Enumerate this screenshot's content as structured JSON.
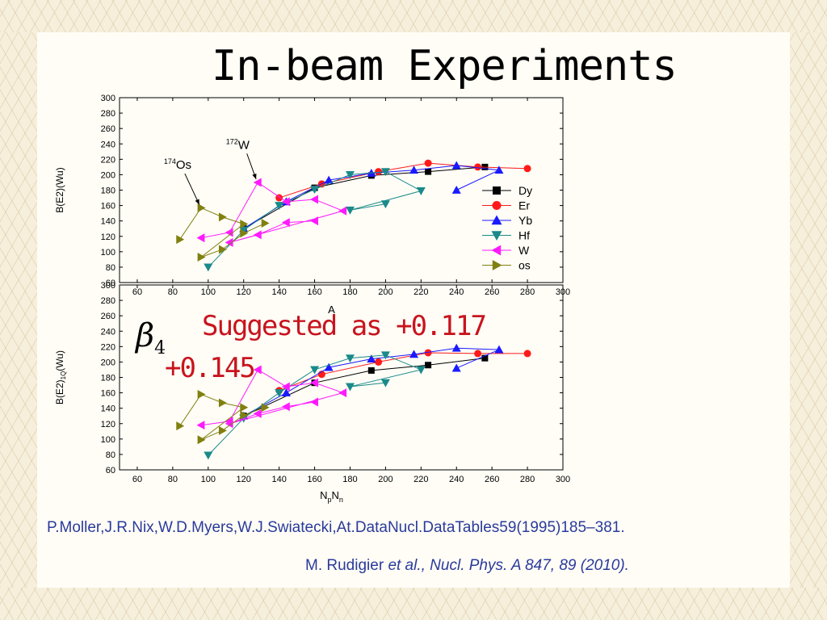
{
  "slide": {
    "title": "In-beam Experiments",
    "beta_symbol": "β",
    "beta_subscript": "4",
    "suggested_text": "Suggested as +0.117",
    "suggested_text2": "+0.145",
    "ref1": "P.Moller,J.R.Nix,W.D.Myers,W.J.Swiatecki,At.DataNucl.DataTables59(1995)185–381.",
    "ref2_author": "M. Rudigier",
    "ref2_rest": "et al., Nucl. Phys. A 847, 89 (2010)."
  },
  "colors": {
    "Dy": "#000000",
    "Er": "#ff1a1a",
    "Yb": "#1a1aff",
    "Hf": "#1a8a8a",
    "W": "#ff1aff",
    "os": "#808010",
    "text_blue": "#2a3a9c",
    "suggest_red": "#c8141e"
  },
  "chart_data": [
    {
      "type": "line",
      "panel": "top",
      "xlabel": "A",
      "ylabel": "B(E2)(Wu)",
      "xlim": [
        50,
        300
      ],
      "ylim": [
        60,
        300
      ],
      "xticks": [
        60,
        80,
        100,
        120,
        140,
        160,
        180,
        200,
        220,
        240,
        260,
        280,
        300
      ],
      "yticks": [
        60,
        80,
        100,
        120,
        140,
        160,
        180,
        200,
        220,
        240,
        260,
        280,
        300
      ],
      "legend": [
        "Dy",
        "Er",
        "Yb",
        "Hf",
        "W",
        "os"
      ],
      "legend_position": "right",
      "annotations": [
        {
          "sup": "174",
          "text": "Os",
          "from": [
            85,
            214
          ],
          "to": [
            95,
            157
          ]
        },
        {
          "sup": "172",
          "text": "W",
          "from": [
            120,
            240
          ],
          "to": [
            127,
            190
          ]
        }
      ],
      "series": [
        {
          "name": "Dy",
          "marker": "square",
          "points": [
            [
              120,
              130
            ],
            [
              160,
              183
            ],
            [
              192,
              199
            ],
            [
              224,
              204
            ],
            [
              256,
              210
            ]
          ]
        },
        {
          "name": "Er",
          "marker": "circle",
          "points": [
            [
              140,
              170
            ],
            [
              164,
              188
            ],
            [
              196,
              204
            ],
            [
              224,
              215
            ],
            [
              252,
              210
            ],
            [
              280,
              208
            ]
          ]
        },
        {
          "name": "Yb",
          "marker": "triangle-up",
          "points": [
            [
              120,
              130
            ],
            [
              144,
              165
            ],
            [
              168,
              193
            ],
            [
              192,
              202
            ],
            [
              216,
              206
            ],
            [
              240,
              212
            ],
            [
              264,
              206
            ],
            [
              240,
              180
            ]
          ]
        },
        {
          "name": "Hf",
          "marker": "triangle-down",
          "points": [
            [
              100,
              80
            ],
            [
              120,
              128
            ],
            [
              140,
              160
            ],
            [
              160,
              181
            ],
            [
              180,
              200
            ],
            [
              200,
              204
            ],
            [
              220,
              179
            ],
            [
              180,
              154
            ],
            [
              200,
              162
            ]
          ]
        },
        {
          "name": "W",
          "marker": "triangle-left",
          "points": [
            [
              96,
              118
            ],
            [
              112,
              125
            ],
            [
              128,
              190
            ],
            [
              144,
              165
            ],
            [
              160,
              168
            ],
            [
              176,
              153
            ],
            [
              112,
              112
            ],
            [
              128,
              122
            ],
            [
              144,
              138
            ],
            [
              160,
              140
            ]
          ]
        },
        {
          "name": "os",
          "marker": "triangle-right",
          "points": [
            [
              84,
              116
            ],
            [
              96,
              157
            ],
            [
              108,
              145
            ],
            [
              120,
              136
            ],
            [
              96,
              93
            ],
            [
              108,
              103
            ],
            [
              120,
              124
            ],
            [
              132,
              137
            ]
          ]
        }
      ]
    },
    {
      "type": "line",
      "panel": "bottom",
      "xlabel": "NpNn",
      "ylabel": "B(E2)1Q(Wu)",
      "xlim": [
        50,
        300
      ],
      "ylim": [
        60,
        300
      ],
      "xticks": [
        60,
        80,
        100,
        120,
        140,
        160,
        180,
        200,
        220,
        240,
        260,
        280,
        300
      ],
      "yticks": [
        60,
        80,
        100,
        120,
        140,
        160,
        180,
        200,
        220,
        240,
        260,
        280,
        300
      ],
      "series": [
        {
          "name": "Dy",
          "marker": "square",
          "points": [
            [
              120,
              130
            ],
            [
              160,
              173
            ],
            [
              192,
              189
            ],
            [
              224,
              196
            ],
            [
              256,
              205
            ]
          ]
        },
        {
          "name": "Er",
          "marker": "circle",
          "points": [
            [
              140,
              163
            ],
            [
              164,
              184
            ],
            [
              196,
              200
            ],
            [
              224,
              212
            ],
            [
              252,
              211
            ],
            [
              280,
              211
            ]
          ]
        },
        {
          "name": "Yb",
          "marker": "triangle-up",
          "points": [
            [
              120,
              130
            ],
            [
              144,
              160
            ],
            [
              168,
              193
            ],
            [
              192,
              204
            ],
            [
              216,
              210
            ],
            [
              240,
              218
            ],
            [
              264,
              216
            ],
            [
              240,
              192
            ]
          ]
        },
        {
          "name": "Hf",
          "marker": "triangle-down",
          "points": [
            [
              100,
              79
            ],
            [
              120,
              127
            ],
            [
              140,
              160
            ],
            [
              160,
              190
            ],
            [
              180,
              205
            ],
            [
              200,
              209
            ],
            [
              220,
              190
            ],
            [
              180,
              168
            ],
            [
              200,
              173
            ]
          ]
        },
        {
          "name": "W",
          "marker": "triangle-left",
          "points": [
            [
              96,
              118
            ],
            [
              112,
              123
            ],
            [
              128,
              190
            ],
            [
              144,
              168
            ],
            [
              160,
              173
            ],
            [
              176,
              160
            ],
            [
              112,
              120
            ],
            [
              128,
              133
            ],
            [
              144,
              142
            ],
            [
              160,
              148
            ]
          ]
        },
        {
          "name": "os",
          "marker": "triangle-right",
          "points": [
            [
              84,
              117
            ],
            [
              96,
              158
            ],
            [
              108,
              147
            ],
            [
              120,
              141
            ],
            [
              96,
              99
            ],
            [
              108,
              111
            ],
            [
              120,
              131
            ],
            [
              132,
              141
            ]
          ]
        }
      ]
    }
  ]
}
